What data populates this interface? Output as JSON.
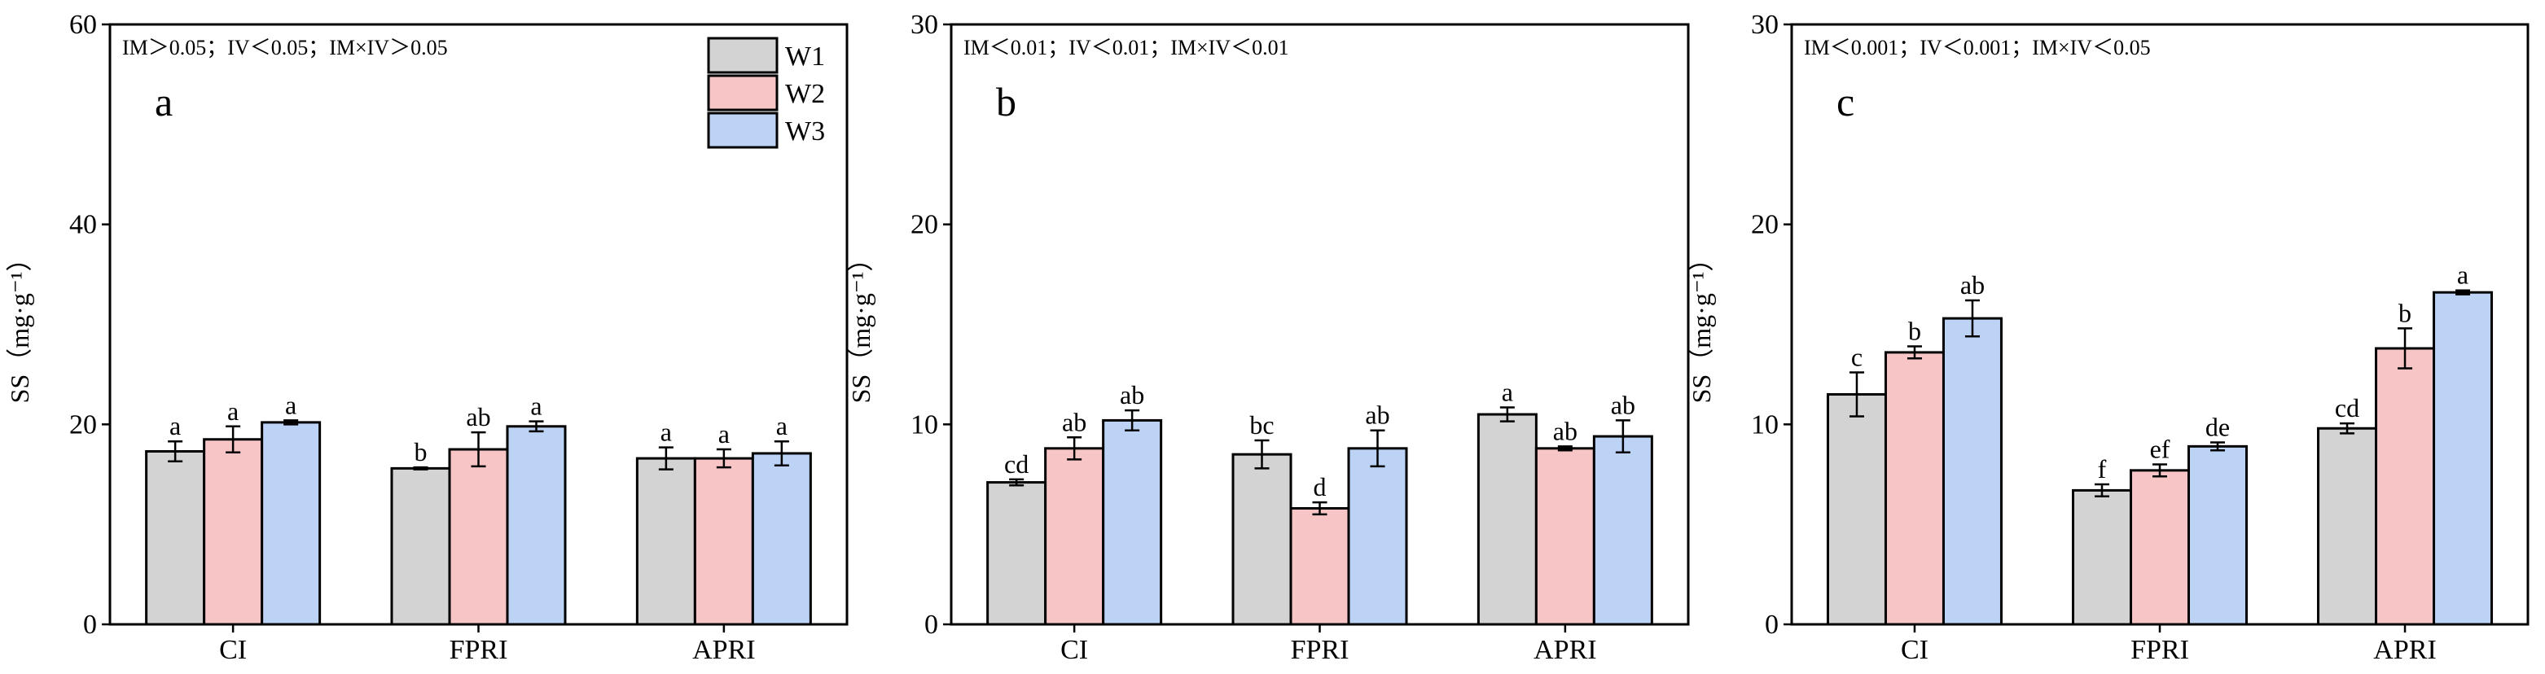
{
  "chart_data": [
    {
      "type": "bar",
      "panel": "a",
      "annotation": "IM＞0.05；IV＜0.05；IM×IV＞0.05",
      "ylabel": "SS（mg·g⁻¹）",
      "xlabel": "",
      "ylim": [
        0,
        60
      ],
      "yticks": [
        0,
        20,
        40,
        60
      ],
      "categories": [
        "CI",
        "FPRI",
        "APRI"
      ],
      "series": [
        {
          "name": "W1",
          "values": [
            17.3,
            15.6,
            16.6
          ],
          "errors": [
            1.0,
            0.1,
            1.1
          ],
          "labels": [
            "a",
            "b",
            "a"
          ]
        },
        {
          "name": "W2",
          "values": [
            18.5,
            17.5,
            16.6
          ],
          "errors": [
            1.3,
            1.7,
            0.9
          ],
          "labels": [
            "a",
            "ab",
            "a"
          ]
        },
        {
          "name": "W3",
          "values": [
            20.2,
            19.8,
            17.1
          ],
          "errors": [
            0.2,
            0.5,
            1.2
          ],
          "labels": [
            "a",
            "a",
            "a"
          ]
        }
      ],
      "legend": {
        "position": "top-right",
        "entries": [
          "W1",
          "W2",
          "W3"
        ]
      }
    },
    {
      "type": "bar",
      "panel": "b",
      "annotation": "IM＜0.01；IV＜0.01；IM×IV＜0.01",
      "ylabel": "SS（mg·g⁻¹）",
      "xlabel": "",
      "ylim": [
        0,
        30
      ],
      "yticks": [
        0,
        10,
        20,
        30
      ],
      "categories": [
        "CI",
        "FPRI",
        "APRI"
      ],
      "series": [
        {
          "name": "W1",
          "values": [
            7.1,
            8.5,
            10.5
          ],
          "errors": [
            0.15,
            0.7,
            0.35
          ],
          "labels": [
            "cd",
            "bc",
            "a"
          ]
        },
        {
          "name": "W2",
          "values": [
            8.8,
            5.8,
            8.8
          ],
          "errors": [
            0.55,
            0.3,
            0.1
          ],
          "labels": [
            "ab",
            "d",
            "ab"
          ]
        },
        {
          "name": "W3",
          "values": [
            10.2,
            8.8,
            9.4
          ],
          "errors": [
            0.5,
            0.9,
            0.8
          ],
          "labels": [
            "ab",
            "ab",
            "ab"
          ]
        }
      ]
    },
    {
      "type": "bar",
      "panel": "c",
      "annotation": "IM＜0.001；IV＜0.001；IM×IV＜0.05",
      "ylabel": "SS（mg·g⁻¹）",
      "xlabel": "",
      "ylim": [
        0,
        30
      ],
      "yticks": [
        0,
        10,
        20,
        30
      ],
      "categories": [
        "CI",
        "FPRI",
        "APRI"
      ],
      "series": [
        {
          "name": "W1",
          "values": [
            11.5,
            6.7,
            9.8
          ],
          "errors": [
            1.1,
            0.3,
            0.25
          ],
          "labels": [
            "c",
            "f",
            "cd"
          ]
        },
        {
          "name": "W2",
          "values": [
            13.6,
            7.7,
            13.8
          ],
          "errors": [
            0.3,
            0.3,
            1.0
          ],
          "labels": [
            "b",
            "ef",
            "b"
          ]
        },
        {
          "name": "W3",
          "values": [
            15.3,
            8.9,
            16.6
          ],
          "errors": [
            0.9,
            0.2,
            0.1
          ],
          "labels": [
            "ab",
            "de",
            "a"
          ]
        }
      ]
    }
  ],
  "colors": {
    "W1": "#d3d3d3",
    "W2": "#f7c5c5",
    "W3": "#bcd3f5",
    "axis": "#000000"
  }
}
